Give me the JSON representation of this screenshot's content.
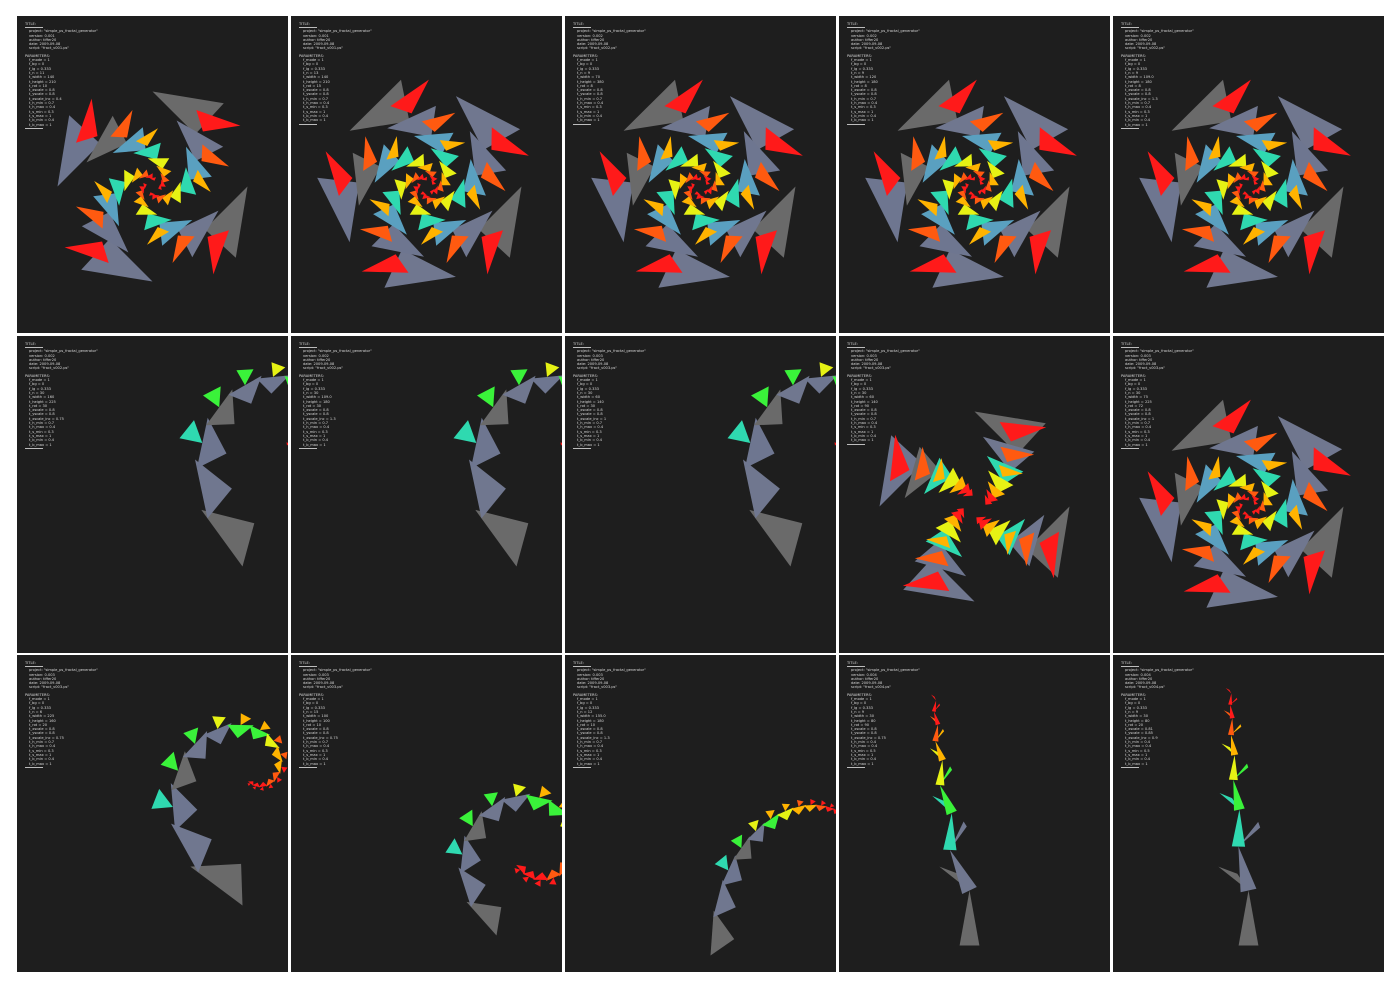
{
  "sheet": {
    "background": "#ffffff",
    "panel_color": "#1e1e1e",
    "meta_text_color": "#d8d8d8"
  },
  "panels": [
    {
      "title_label": "TITLE:",
      "header": [
        "project: \"simple_ps_fractal_generator\"",
        "version: 0.001",
        "author: tiffer20",
        "date: 2009-09-08",
        "script: \"fract_v001.ps\""
      ],
      "params_label": "PARAMETERS:",
      "params": [
        "f_mode = 1",
        "f_bg = 0",
        "f_lg = 0.333",
        "t_n = 11",
        "t_width = 140",
        "t_height = 210",
        "t_rot = 10",
        "t_xscale = 0.8",
        "t_yscale = 0.8",
        "t_xscale_inc = 0.4",
        "t_h_min = 0.7",
        "t_h_max = 0.4",
        "t_s_min = 0.3",
        "t_s_max = 1",
        "t_b_min = 0.4",
        "t_b_max = 1"
      ],
      "shape": "spiral",
      "arms": 4,
      "seed": 1
    },
    {
      "title_label": "TITLE:",
      "header": [
        "project: \"simple_ps_fractal_generator\"",
        "version: 0.001",
        "author: tiffer20",
        "date: 2009-09-08",
        "script: \"fract_v001.ps\""
      ],
      "params_label": "PARAMETERS:",
      "params": [
        "f_mode = 1",
        "f_bg = 0",
        "f_lg = 0.333",
        "t_n = 13",
        "t_width = 140",
        "t_height = 210",
        "t_rot = 15",
        "t_xscale = 0.8",
        "t_yscale = 0.8",
        "t_h_min = 0.7",
        "t_h_max = 0.4",
        "t_s_min = 0.3",
        "t_s_max = 1",
        "t_b_min = 0.4",
        "t_b_max = 1"
      ],
      "shape": "spiral",
      "arms": 5,
      "seed": 2
    },
    {
      "title_label": "TITLE:",
      "header": [
        "project: \"simple_ps_fractal_generator\"",
        "version: 0.002",
        "author: tiffer20",
        "date: 2009-09-08",
        "script: \"fract_v002.ps\""
      ],
      "params_label": "PARAMETERS:",
      "params": [
        "f_mode = 1",
        "f_bg = 0",
        "f_lg = 0.333",
        "t_n = 9",
        "t_width = 70",
        "t_height = 380",
        "t_rot = 8",
        "t_xscale = 0.8",
        "t_yscale = 0.8",
        "t_h_min = 0.7",
        "t_h_max = 0.4",
        "t_s_min = 0.3",
        "t_s_max = 1",
        "t_b_min = 0.4",
        "t_b_max = 1"
      ],
      "shape": "pentagon",
      "arms": 5,
      "seed": 3
    },
    {
      "title_label": "TITLE:",
      "header": [
        "project: \"simple_ps_fractal_generator\"",
        "version: 0.002",
        "author: tiffer20",
        "date: 2009-09-08",
        "script: \"fract_v002.ps\""
      ],
      "params_label": "PARAMETERS:",
      "params": [
        "f_mode = 1",
        "f_bg = 0",
        "f_lg = 0.333",
        "t_n = 9",
        "t_width = 120",
        "t_height = 180",
        "t_rot = 8",
        "t_xscale = 0.8",
        "t_yscale = 0.8",
        "t_h_min = 0.7",
        "t_h_max = 0.4",
        "t_s_min = 0.3",
        "t_s_max = 1",
        "t_b_min = 0.4",
        "t_b_max = 1"
      ],
      "shape": "pentagon",
      "arms": 5,
      "seed": 4
    },
    {
      "title_label": "TITLE:",
      "header": [
        "project: \"simple_ps_fractal_generator\"",
        "version: 0.002",
        "author: tiffer20",
        "date: 2009-09-08",
        "script: \"fract_v002.ps\""
      ],
      "params_label": "PARAMETERS:",
      "params": [
        "f_mode = 1",
        "f_bg = 0",
        "f_lg = 0.333",
        "t_n = 9",
        "t_width = 109.0",
        "t_height = 180",
        "t_rot = 8",
        "t_xscale = 0.8",
        "t_yscale = 0.8",
        "t_xscale_inc = 1.3",
        "t_h_min = 0.7",
        "t_h_max = 0.4",
        "t_s_min = 0.3",
        "t_s_max = 1",
        "t_b_min = 0.4",
        "t_b_max = 1"
      ],
      "shape": "burst",
      "arms": 5,
      "seed": 5
    },
    {
      "title_label": "TITLE:",
      "header": [
        "project: \"simple_ps_fractal_generator\"",
        "version: 0.002",
        "author: tiffer20",
        "date: 2009-09-08",
        "script: \"fract_v002.ps\""
      ],
      "params_label": "PARAMETERS:",
      "params": [
        "f_mode = 1",
        "f_bg = 0",
        "f_lg = 0.333",
        "t_n = 30",
        "t_width = 160",
        "t_height = 225",
        "t_rot = 30",
        "t_xscale = 0.8",
        "t_yscale = 0.8",
        "t_xscale_inc = 0.75",
        "t_h_min = 0.7",
        "t_h_max = 0.4",
        "t_s_min = 0.3",
        "t_s_max = 1",
        "t_b_min = 0.4",
        "t_b_max = 1"
      ],
      "shape": "coil",
      "arms": 1,
      "seed": 6
    },
    {
      "title_label": "TITLE:",
      "header": [
        "project: \"simple_ps_fractal_generator\"",
        "version: 0.002",
        "author: tiffer20",
        "date: 2009-09-08",
        "script: \"fract_v002.ps\""
      ],
      "params_label": "PARAMETERS:",
      "params": [
        "f_mode = 1",
        "f_bg = 0",
        "f_lg = 0.333",
        "t_n = 30",
        "t_width = 109.0",
        "t_height = 180",
        "t_rot = 30",
        "t_xscale = 0.8",
        "t_yscale = 0.8",
        "t_xscale_inc = 1.3",
        "t_h_min = 0.7",
        "t_h_max = 0.4",
        "t_s_min = 0.3",
        "t_s_max = 1",
        "t_b_min = 0.4",
        "t_b_max = 1"
      ],
      "shape": "coil",
      "arms": 1,
      "seed": 7
    },
    {
      "title_label": "TITLE:",
      "header": [
        "project: \"simple_ps_fractal_generator\"",
        "version: 0.003",
        "author: tiffer20",
        "date: 2009-09-08",
        "script: \"fract_v003.ps\""
      ],
      "params_label": "PARAMETERS:",
      "params": [
        "f_mode = 1",
        "f_bg = 0",
        "f_lg = 0.333",
        "t_n = 30",
        "t_width = 60",
        "t_height = 140",
        "t_rot = 30",
        "t_xscale = 0.8",
        "t_yscale = 0.8",
        "t_xscale_inc = 1",
        "t_h_min = 0.7",
        "t_h_max = 0.4",
        "t_s_min = 0.3",
        "t_s_max = 1",
        "t_b_min = 0.4",
        "t_b_max = 1"
      ],
      "shape": "branch-coil",
      "arms": 1,
      "seed": 8
    },
    {
      "title_label": "TITLE:",
      "header": [
        "project: \"simple_ps_fractal_generator\"",
        "version: 0.003",
        "author: tiffer20",
        "date: 2009-09-08",
        "script: \"fract_v003.ps\""
      ],
      "params_label": "PARAMETERS:",
      "params": [
        "f_mode = 1",
        "f_bg = 0",
        "f_lg = 0.333",
        "t_n = 30",
        "t_width = 60",
        "t_height = 140",
        "t_rot = 90",
        "t_xscale = 0.8",
        "t_yscale = 0.8",
        "t_h_min = 0.7",
        "t_h_max = 0.4",
        "t_s_min = 0.3",
        "t_s_max = 1",
        "t_b_min = 0.4",
        "t_b_max = 1"
      ],
      "shape": "square",
      "arms": 4,
      "seed": 9
    },
    {
      "title_label": "TITLE:",
      "header": [
        "project: \"simple_ps_fractal_generator\"",
        "version: 0.003",
        "author: tiffer20",
        "date: 2009-09-08",
        "script: \"fract_v003.ps\""
      ],
      "params_label": "PARAMETERS:",
      "params": [
        "f_mode = 1",
        "f_bg = 0",
        "f_lg = 0.333",
        "t_n = 30",
        "t_width = 75",
        "t_height = 225",
        "t_rot = 72",
        "t_xscale = 0.8",
        "t_yscale = 0.8",
        "t_xscale_inc = 1",
        "t_h_min = 0.7",
        "t_h_max = 0.4",
        "t_s_min = 0.3",
        "t_s_max = 1",
        "t_b_min = 0.4",
        "t_b_max = 1"
      ],
      "shape": "pentagon-burst",
      "arms": 5,
      "seed": 10
    },
    {
      "title_label": "TITLE:",
      "header": [
        "project: \"simple_ps_fractal_generator\"",
        "version: 0.003",
        "author: tiffer20",
        "date: 2009-09-08",
        "script: \"fract_v003.ps\""
      ],
      "params_label": "PARAMETERS:",
      "params": [
        "f_mode = 1",
        "f_bg = 0",
        "f_lg = 0.333",
        "t_n = 6",
        "t_width = 225",
        "t_height = 160",
        "t_rot = 20",
        "t_xscale = 0.8",
        "t_yscale = 0.8",
        "t_xscale_inc = 0.75",
        "t_h_min = 0.7",
        "t_h_max = 0.4",
        "t_s_min = 0.3",
        "t_s_max = 1",
        "t_b_min = 0.4",
        "t_b_max = 1"
      ],
      "shape": "shell",
      "arms": 1,
      "seed": 11
    },
    {
      "title_label": "TITLE:",
      "header": [
        "project: \"simple_ps_fractal_generator\"",
        "version: 0.003",
        "author: tiffer20",
        "date: 2009-09-08",
        "script: \"fract_v003.ps\""
      ],
      "params_label": "PARAMETERS:",
      "params": [
        "f_mode = 1",
        "f_bg = 0",
        "f_lg = 0.333",
        "t_n = 15",
        "t_width = 100",
        "t_height = 100",
        "t_rot = 10",
        "t_xscale = 0.8",
        "t_yscale = 0.8",
        "t_xscale_inc = 0.75",
        "t_h_min = 0.7",
        "t_h_max = 0.4",
        "t_s_min = 0.3",
        "t_s_max = 1",
        "t_b_min = 0.4",
        "t_b_max = 1"
      ],
      "shape": "arc",
      "arms": 1,
      "seed": 12
    },
    {
      "title_label": "TITLE:",
      "header": [
        "project: \"simple_ps_fractal_generator\"",
        "version: 0.003",
        "author: tiffer20",
        "date: 2009-09-08",
        "script: \"fract_v003.ps\""
      ],
      "params_label": "PARAMETERS:",
      "params": [
        "f_mode = 1",
        "f_bg = 0",
        "f_lg = 0.333",
        "t_n = 12",
        "t_width = 155.0",
        "t_height = 180",
        "t_rot = 10",
        "t_xscale = 0.8",
        "t_yscale = 0.8",
        "t_xscale_inc = 1.3",
        "t_h_min = 0.7",
        "t_h_max = 0.4",
        "t_s_min = 0.3",
        "t_s_max = 1",
        "t_b_min = 0.4",
        "t_b_max = 1"
      ],
      "shape": "hook",
      "arms": 1,
      "seed": 13
    },
    {
      "title_label": "TITLE:",
      "header": [
        "project: \"simple_ps_fractal_generator\"",
        "version: 0.004",
        "author: tiffer20",
        "date: 2009-09-08",
        "script: \"fract_v004.ps\""
      ],
      "params_label": "PARAMETERS:",
      "params": [
        "f_mode = 1",
        "f_bg = 0",
        "f_lg = 0.333",
        "t_n = 9",
        "t_width = 30",
        "t_height = 80",
        "t_rot = 90",
        "t_xscale = 0.8",
        "t_yscale = 0.8",
        "t_xscale_inc = 0.75",
        "t_h_min = 0.4",
        "t_h_max = 0.4",
        "t_s_min = 0.5",
        "t_s_max = 1",
        "t_b_min = 0.4",
        "t_b_max = 1"
      ],
      "shape": "tree",
      "arms": 1,
      "seed": 14
    },
    {
      "title_label": "TITLE:",
      "header": [
        "project: \"simple_ps_fractal_generator\"",
        "version: 0.004",
        "author: tiffer20",
        "date: 2009-09-08",
        "script: \"fract_v004.ps\""
      ],
      "params_label": "PARAMETERS:",
      "params": [
        "f_mode = 1",
        "f_bg = 0",
        "f_lg = 0.333",
        "t_n = 9",
        "t_width = 30",
        "t_height = 80",
        "t_rot = 20",
        "t_xscale = 0.81",
        "t_yscale = 0.85",
        "t_xscale_inc = 0.9",
        "t_h_min = 0.4",
        "t_h_max = 0.4",
        "t_s_min = 0.5",
        "t_s_max = 1",
        "t_b_min = 0.4",
        "t_b_max = 1"
      ],
      "shape": "tree",
      "arms": 1,
      "seed": 15
    }
  ]
}
